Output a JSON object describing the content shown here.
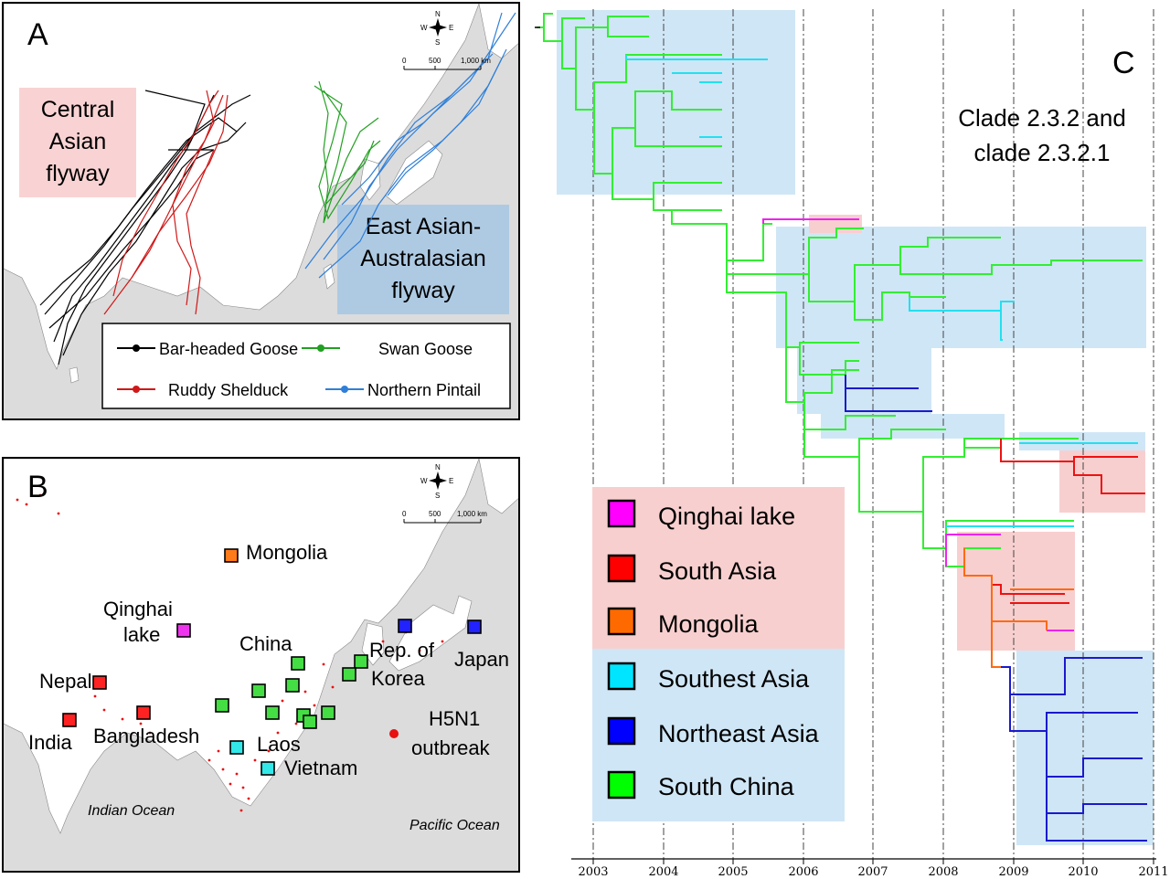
{
  "panel_a": {
    "letter": "A",
    "central_label": [
      "Central",
      "Asian",
      "flyway"
    ],
    "east_label": [
      "East Asian-",
      "Australasian",
      "flyway"
    ],
    "scale": {
      "zero": "0",
      "mid": "500",
      "end": "1,000 km"
    },
    "compass": {
      "n": "N",
      "s": "S",
      "e": "E",
      "w": "W"
    },
    "legend": [
      {
        "label": "Bar-headed Goose",
        "color": "#000000"
      },
      {
        "label": "Swan Goose",
        "color": "#22a022"
      },
      {
        "label": "Ruddy Shelduck",
        "color": "#d01818"
      },
      {
        "label": "Northern Pintail",
        "color": "#2f7fd8"
      }
    ]
  },
  "panel_b": {
    "letter": "B",
    "scale": {
      "zero": "0",
      "mid": "500",
      "end": "1,000 km"
    },
    "compass": {
      "n": "N",
      "s": "S",
      "e": "E",
      "w": "W"
    },
    "places": {
      "mongolia": "Mongolia",
      "qinghai1": "Qinghai",
      "qinghai2": "lake",
      "china": "China",
      "rok1": "Rep. of",
      "rok2": "Korea",
      "japan": "Japan",
      "nepal": "Nepal",
      "india": "India",
      "bangladesh": "Bangladesh",
      "laos": "Laos",
      "vietnam": "Vietnam",
      "h5n1_1": "H5N1",
      "h5n1_2": "outbreak"
    },
    "oceans": {
      "indian": "Indian Ocean",
      "pacific": "Pacific Ocean"
    }
  },
  "panel_c": {
    "letter": "C",
    "title1": "Clade 2.3.2 and",
    "title2": "clade 2.3.2.1",
    "years": [
      "2003",
      "2004",
      "2005",
      "2006",
      "2007",
      "2008",
      "2009",
      "2010",
      "2011"
    ],
    "legend": [
      {
        "label": "Qinghai lake",
        "color": "#ff00ff"
      },
      {
        "label": "South Asia",
        "color": "#ff0000"
      },
      {
        "label": "Mongolia",
        "color": "#ff6a00"
      },
      {
        "label": "Southest Asia",
        "color": "#00e5ff"
      },
      {
        "label": "Northeast Asia",
        "color": "#0000ff"
      },
      {
        "label": "South China",
        "color": "#00ff00"
      }
    ]
  },
  "colors": {
    "land": "#ffffff",
    "sea": "#dcdcdc",
    "pink_box": "#f8cfcf",
    "blue_box": "#cfe6f6",
    "outbreak": "#e81010",
    "tree_green": "#33ee33",
    "tree_cyan": "#22e0f0",
    "tree_blue": "#1a1acc",
    "tree_red": "#ee1111",
    "tree_orange": "#ff6a10",
    "tree_magenta": "#ee22ee"
  }
}
